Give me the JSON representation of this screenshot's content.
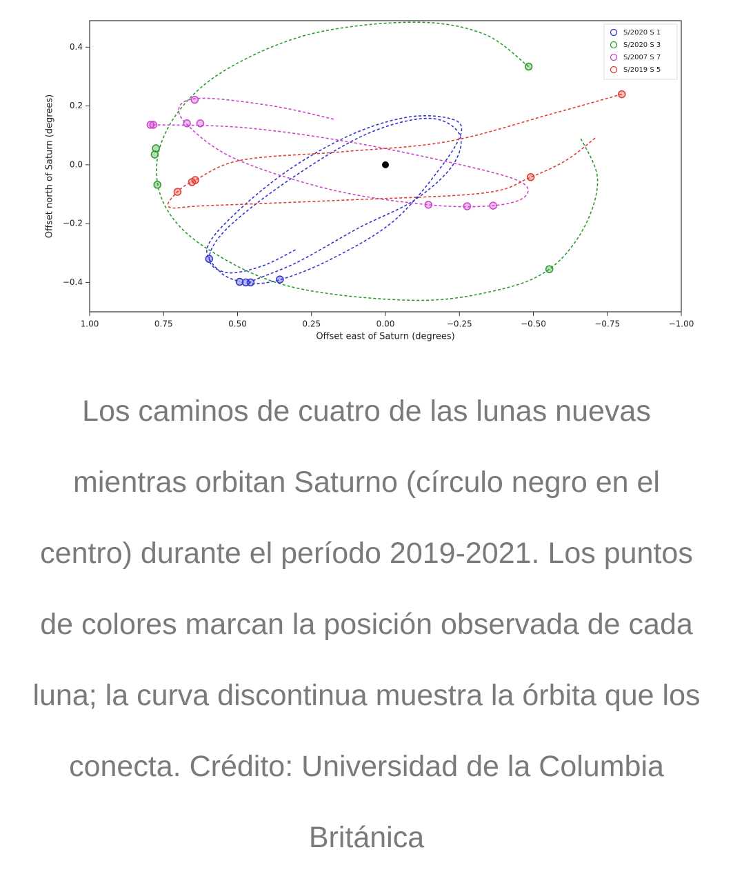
{
  "chart_data": {
    "type": "scatter",
    "xlabel": "Offset east of Saturn (degrees)",
    "ylabel": "Offset north of Saturn (degrees)",
    "xlim": [
      1.0,
      -1.0
    ],
    "ylim": [
      -0.5,
      0.49
    ],
    "xticks": [
      {
        "value": 1,
        "label": "1.00"
      },
      {
        "value": 0.75,
        "label": "0.75"
      },
      {
        "value": 0.5,
        "label": "0.50"
      },
      {
        "value": 0.25,
        "label": "0.25"
      },
      {
        "value": 0,
        "label": "0.00"
      },
      {
        "value": -0.25,
        "label": "−0.25"
      },
      {
        "value": -0.5,
        "label": "−0.50"
      },
      {
        "value": -0.75,
        "label": "−0.75"
      },
      {
        "value": -1,
        "label": "−1.00"
      }
    ],
    "yticks": [
      {
        "value": -0.4,
        "label": "−0.4"
      },
      {
        "value": -0.2,
        "label": "−0.2"
      },
      {
        "value": 0,
        "label": "0.0"
      },
      0.2,
      0.4
    ],
    "legend": "upper right",
    "center": {
      "x": 0,
      "y": 0,
      "color": "#000000"
    },
    "series": [
      {
        "name": "S/2020 S 1",
        "color": "#3333cc",
        "points": {
          "x": [
            0.596,
            0.493,
            0.472,
            0.456,
            0.357
          ],
          "y": [
            -0.32,
            -0.398,
            -0.4,
            -0.4,
            -0.39
          ]
        },
        "orbit": {
          "x": [
            0.304,
            0.416,
            0.533,
            0.596,
            0.533,
            0.322,
            0.065,
            -0.145,
            -0.25,
            -0.227,
            -0.098,
            0.089,
            0.299,
            0.458,
            0.357,
            0.182,
            -0.028,
            -0.192,
            -0.257,
            -0.215,
            -0.075,
            0.112,
            0.322,
            0.509,
            0.603,
            0.556,
            0.493
          ],
          "y": [
            -0.289,
            -0.344,
            -0.367,
            -0.32,
            -0.214,
            -0.049,
            0.104,
            0.158,
            0.104,
            -0.002,
            -0.12,
            -0.214,
            -0.332,
            -0.4,
            -0.391,
            -0.32,
            -0.191,
            -0.002,
            0.115,
            0.158,
            0.162,
            0.104,
            -0.014,
            -0.167,
            -0.285,
            -0.367,
            -0.398
          ]
        }
      },
      {
        "name": "S/2020 S 3",
        "color": "#2a9a2a",
        "points": {
          "x": [
            -0.484,
            0.776,
            0.78,
            0.771,
            -0.554
          ],
          "y": [
            0.334,
            0.056,
            0.035,
            -0.068,
            -0.355
          ]
        },
        "orbit": {
          "x": [
            -0.484,
            -0.332,
            -0.098,
            0.252,
            0.533,
            0.696,
            0.771,
            0.743,
            0.603,
            0.322,
            -0.098,
            -0.379,
            -0.554,
            -0.671,
            -0.717,
            -0.659
          ],
          "y": [
            0.334,
            0.445,
            0.485,
            0.445,
            0.327,
            0.186,
            0.021,
            -0.144,
            -0.285,
            -0.414,
            -0.461,
            -0.426,
            -0.355,
            -0.214,
            -0.049,
            0.092
          ]
        }
      },
      {
        "name": "S/2007 S 7",
        "color": "#cc44cc",
        "points": {
          "x": [
            0.645,
            0.794,
            0.785,
            0.671,
            0.626,
            -0.145,
            -0.276,
            -0.364
          ],
          "y": [
            0.221,
            0.136,
            0.136,
            0.141,
            0.141,
            -0.136,
            -0.141,
            -0.139
          ]
        },
        "orbit": {
          "x": [
            0.175,
            0.369,
            0.603,
            0.692,
            0.673,
            0.509,
            0.182,
            -0.145,
            -0.364,
            -0.472,
            -0.449,
            -0.215,
            0.136,
            0.486,
            0.794
          ],
          "y": [
            0.155,
            0.198,
            0.226,
            0.205,
            0.139,
            0.021,
            -0.085,
            -0.136,
            -0.139,
            -0.108,
            -0.054,
            0.009,
            0.08,
            0.127,
            0.136
          ]
        }
      },
      {
        "name": "S/2019 S 5",
        "color": "#e03c31",
        "points": {
          "x": [
            -0.799,
            -0.491,
            0.703,
            0.654,
            0.643
          ],
          "y": [
            0.24,
            -0.042,
            -0.092,
            -0.059,
            -0.052
          ]
        },
        "orbit": {
          "x": [
            -0.799,
            -0.565,
            -0.215,
            0.136,
            0.486,
            0.643,
            0.703,
            0.731,
            0.603,
            0.136,
            -0.332,
            -0.491,
            -0.612,
            -0.71
          ],
          "y": [
            0.24,
            0.174,
            0.08,
            0.045,
            0.016,
            -0.052,
            -0.092,
            -0.144,
            -0.139,
            -0.12,
            -0.096,
            -0.042,
            0.016,
            0.092
          ]
        }
      }
    ]
  },
  "caption": "Los caminos de cuatro de las lunas nuevas mientras orbitan Saturno (círculo negro en el centro) durante el período 2019-2021. Los puntos de colores marcan la posición observada de cada luna; la curva discontinua muestra la órbita que los conecta. Crédito: Universidad de la Columbia Británica"
}
